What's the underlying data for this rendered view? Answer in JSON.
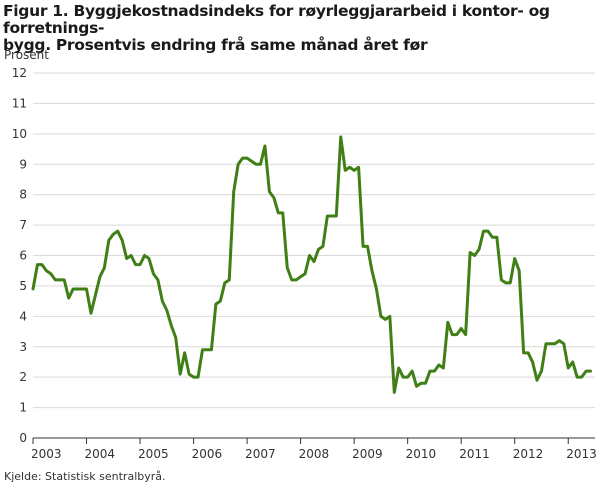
{
  "title": {
    "line1": "Figur 1. Byggjekostnadsindeks for røyrleggjararbeid i kontor- og forretnings-",
    "line2": "bygg. Prosentvis endring frå same månad året før"
  },
  "source": "Kjelde: Statistisk sentralbyrå.",
  "colors": {
    "series": "#3f7f16",
    "grid": "#d9d9d9",
    "axis": "#333333"
  },
  "chart_data": {
    "type": "line",
    "ylabel": "Prosent",
    "xlabel": "",
    "ylim": [
      0,
      12
    ],
    "yticks": [
      0,
      1,
      2,
      3,
      4,
      5,
      6,
      7,
      8,
      9,
      10,
      11,
      12
    ],
    "xticks": [
      "2003",
      "2004",
      "2005",
      "2006",
      "2007",
      "2008",
      "2009",
      "2010",
      "2011",
      "2012",
      "2013"
    ],
    "grid": true,
    "series": [
      {
        "name": "",
        "start": "2003-01",
        "frequency": "monthly",
        "values": [
          4.9,
          5.7,
          5.7,
          5.5,
          5.4,
          5.2,
          5.2,
          5.2,
          4.6,
          4.9,
          4.9,
          4.9,
          4.9,
          4.1,
          4.7,
          5.3,
          5.6,
          6.5,
          6.7,
          6.8,
          6.5,
          5.9,
          6.0,
          5.7,
          5.7,
          6.0,
          5.9,
          5.4,
          5.2,
          4.5,
          4.2,
          3.7,
          3.3,
          2.1,
          2.8,
          2.1,
          2.0,
          2.0,
          2.9,
          2.9,
          2.9,
          4.4,
          4.5,
          5.1,
          5.2,
          8.1,
          9.0,
          9.2,
          9.2,
          9.1,
          9.0,
          9.0,
          9.6,
          8.1,
          7.9,
          7.4,
          7.4,
          5.6,
          5.2,
          5.2,
          5.3,
          5.4,
          6.0,
          5.8,
          6.2,
          6.3,
          7.3,
          7.3,
          7.3,
          9.9,
          8.8,
          8.9,
          8.8,
          8.9,
          6.3,
          6.3,
          5.5,
          4.9,
          4.0,
          3.9,
          4.0,
          1.5,
          2.3,
          2.0,
          2.0,
          2.2,
          1.7,
          1.8,
          1.8,
          2.2,
          2.2,
          2.4,
          2.3,
          3.8,
          3.4,
          3.4,
          3.6,
          3.4,
          6.1,
          6.0,
          6.2,
          6.8,
          6.8,
          6.6,
          6.6,
          5.2,
          5.1,
          5.1,
          5.9,
          5.5,
          2.8,
          2.8,
          2.5,
          1.9,
          2.2,
          3.1,
          3.1,
          3.1,
          3.2,
          3.1,
          2.3,
          2.5,
          2.0,
          2.0,
          2.2,
          2.2
        ]
      }
    ]
  }
}
